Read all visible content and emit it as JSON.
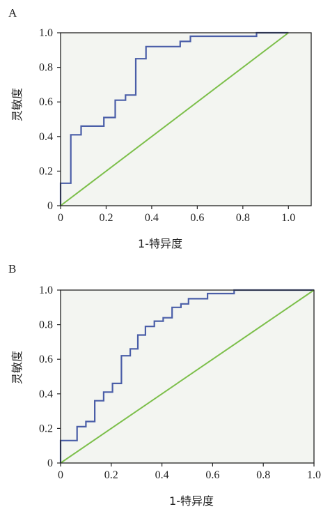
{
  "colors": {
    "roc": "#4a5ea8",
    "reference": "#7cbf4a",
    "plot_background": "#f3f5f1",
    "frame": "#222222"
  },
  "chart_data": [
    {
      "panel": "A",
      "type": "line",
      "xlabel": "1-特异度",
      "ylabel": "灵敏度",
      "xlim": [
        0,
        1.1
      ],
      "ylim": [
        0,
        1.0
      ],
      "xticks": [
        "0",
        "0.2",
        "0.4",
        "0.6",
        "0.8",
        "1.0"
      ],
      "yticks": [
        "0",
        "0.2",
        "0.4",
        "0.6",
        "0.8",
        "1.0"
      ],
      "grid": false,
      "series": [
        {
          "kind": "step",
          "x": [
            0,
            0,
            0.045,
            0.045,
            0.09,
            0.09,
            0.19,
            0.19,
            0.24,
            0.24,
            0.285,
            0.285,
            0.33,
            0.33,
            0.375,
            0.375,
            0.525,
            0.525,
            0.57,
            0.57,
            0.86,
            0.86,
            1.0
          ],
          "y": [
            0,
            0.13,
            0.13,
            0.41,
            0.41,
            0.46,
            0.46,
            0.51,
            0.51,
            0.61,
            0.61,
            0.64,
            0.64,
            0.85,
            0.85,
            0.92,
            0.92,
            0.95,
            0.95,
            0.98,
            0.98,
            1.0,
            1.0
          ]
        },
        {
          "kind": "reference",
          "x": [
            0,
            1.0
          ],
          "y": [
            0,
            1.0
          ]
        }
      ]
    },
    {
      "panel": "B",
      "type": "line",
      "xlabel": "1-特异度",
      "ylabel": "灵敏度",
      "xlim": [
        0,
        1.0
      ],
      "ylim": [
        0,
        1.0
      ],
      "xticks": [
        "0",
        "0.2",
        "0.4",
        "0.6",
        "0.8",
        "1.0"
      ],
      "yticks": [
        "0",
        "0.2",
        "0.4",
        "0.6",
        "0.8",
        "1.0"
      ],
      "grid": false,
      "series": [
        {
          "kind": "step",
          "x": [
            0,
            0,
            0.065,
            0.065,
            0.1,
            0.1,
            0.135,
            0.135,
            0.17,
            0.17,
            0.205,
            0.205,
            0.24,
            0.24,
            0.275,
            0.275,
            0.305,
            0.305,
            0.335,
            0.335,
            0.37,
            0.37,
            0.405,
            0.405,
            0.44,
            0.44,
            0.475,
            0.475,
            0.505,
            0.505,
            0.58,
            0.58,
            0.685,
            0.685,
            0.89,
            0.89,
            1.0
          ],
          "y": [
            0,
            0.13,
            0.13,
            0.21,
            0.21,
            0.24,
            0.24,
            0.36,
            0.36,
            0.41,
            0.41,
            0.46,
            0.46,
            0.62,
            0.62,
            0.66,
            0.66,
            0.74,
            0.74,
            0.79,
            0.79,
            0.82,
            0.82,
            0.84,
            0.84,
            0.9,
            0.9,
            0.92,
            0.92,
            0.95,
            0.95,
            0.98,
            0.98,
            1.0,
            1.0,
            1.0,
            1.0
          ]
        },
        {
          "kind": "reference",
          "x": [
            0,
            1.0
          ],
          "y": [
            0,
            1.0
          ]
        }
      ]
    }
  ]
}
